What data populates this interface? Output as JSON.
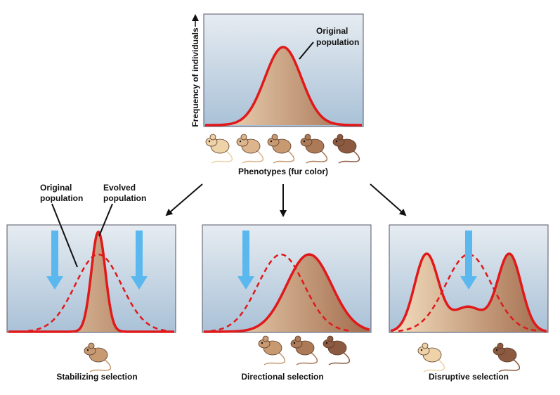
{
  "top_panel": {
    "y_axis_label": "Frequency of individuals",
    "curve_label": [
      "Original",
      "population"
    ],
    "x_axis_label": "Phenotypes (fur color)"
  },
  "panels": [
    {
      "title": "Stabilizing selection",
      "labels": [
        [
          "Original",
          "population"
        ],
        [
          "Evolved",
          "population"
        ]
      ]
    },
    {
      "title": "Directional selection"
    },
    {
      "title": "Disruptive selection"
    }
  ]
}
